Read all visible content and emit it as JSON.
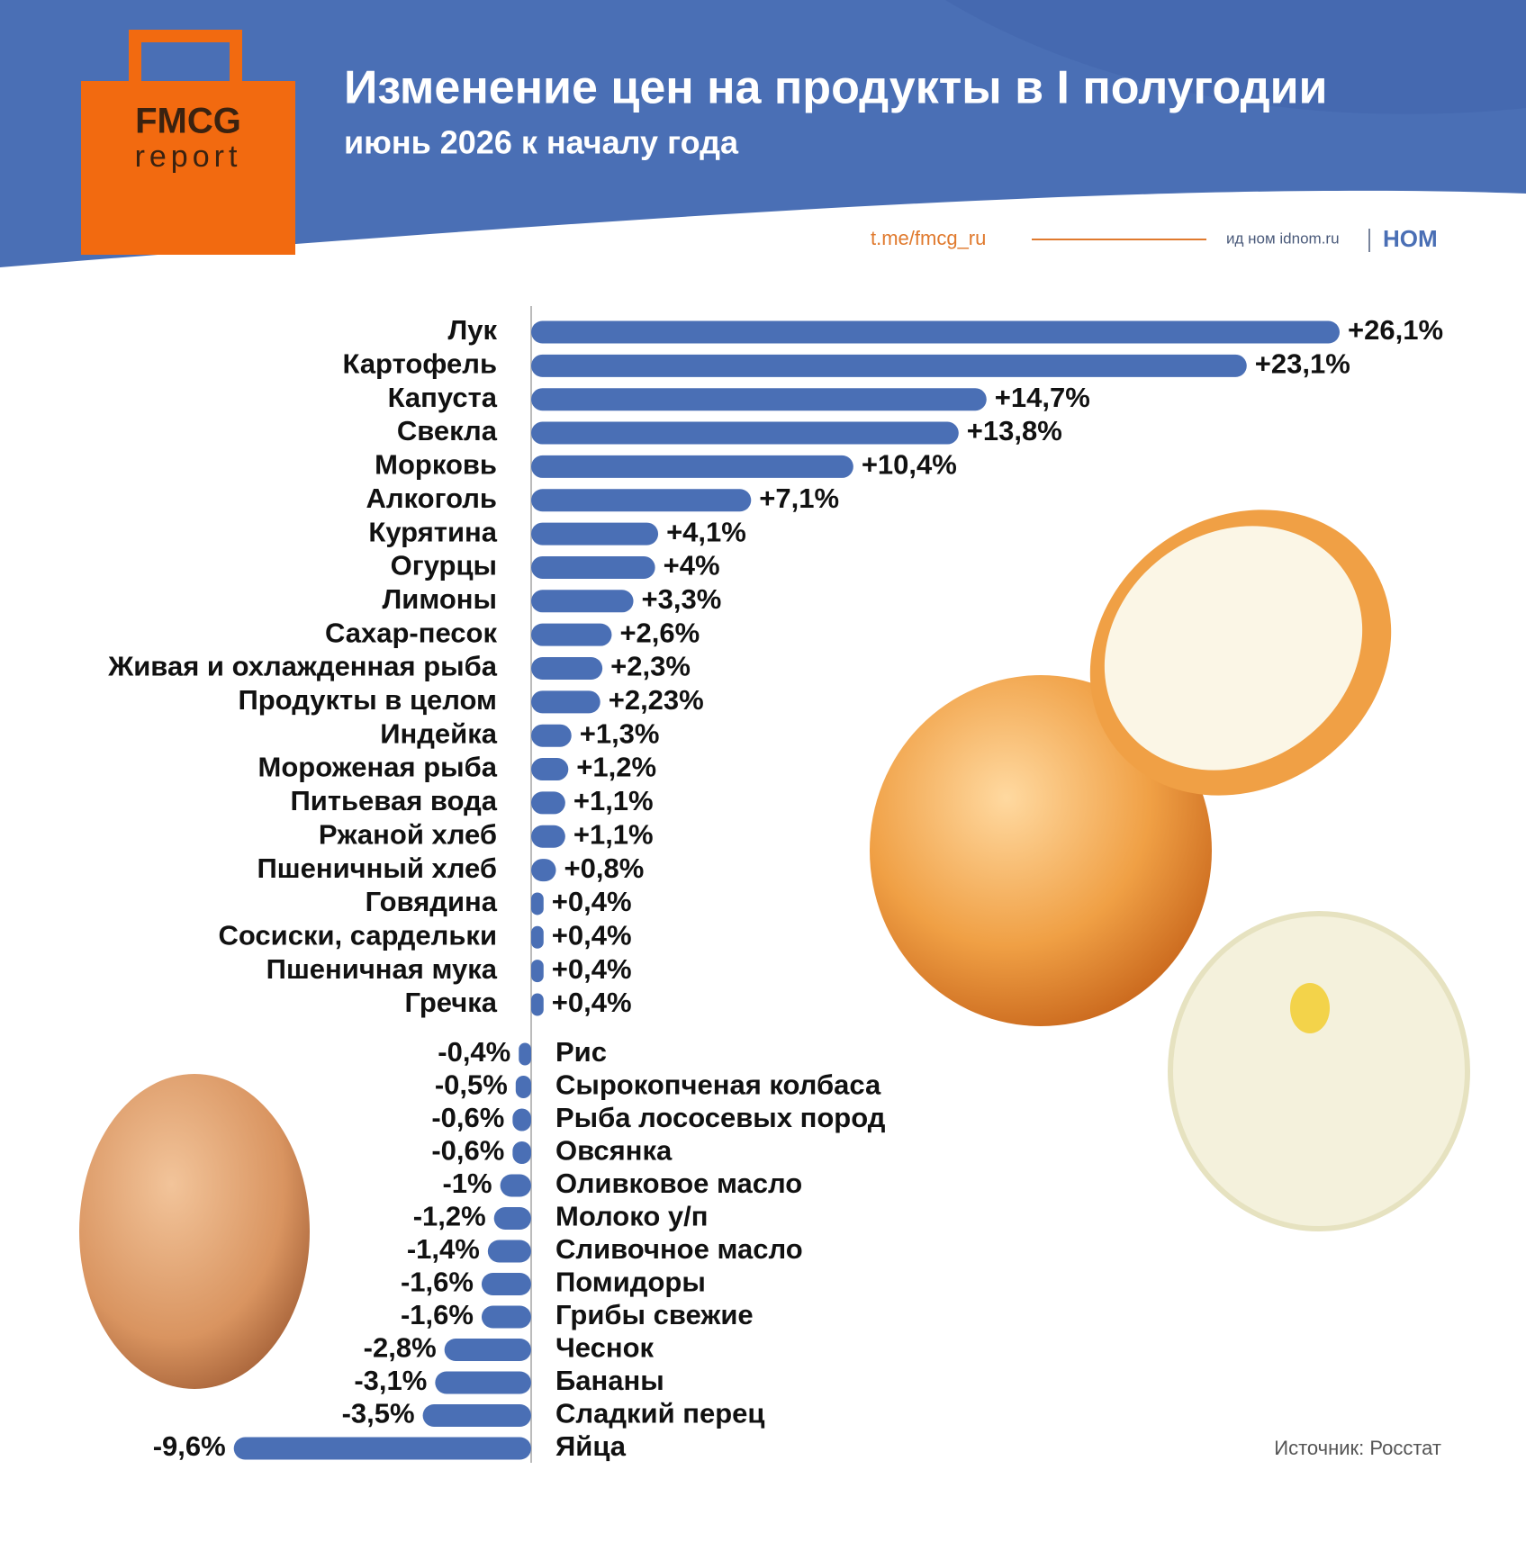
{
  "chart_data": {
    "type": "bar",
    "orientation": "horizontal",
    "title": "Изменение цен на продукты в I полугодии",
    "subtitle": "июнь 2026 к началу года",
    "logo": {
      "title": "FMCG",
      "subtitle": "report"
    },
    "channel": "t.me/fmcg_ru",
    "publisher": "ид ном idnom.ru",
    "brand": "НОМ",
    "source": "Источник: Росстат",
    "color": "#4a6fb5",
    "categories": [
      "Лук",
      "Картофель",
      "Капуста",
      "Свекла",
      "Морковь",
      "Алкоголь",
      "Курятина",
      "Огурцы",
      "Лимоны",
      "Сахар-песок",
      "Живая и охлажденная рыба",
      "Продукты в целом",
      "Индейка",
      "Мороженая рыба",
      "Питьевая вода",
      "Ржаной хлеб",
      "Пшеничный хлеб",
      "Говядина",
      "Сосиски, сардельки",
      "Пшеничная мука",
      "Гречка",
      "Рис",
      "Сырокопченая колбаса",
      "Рыба лососевых пород",
      "Овсянка",
      "Оливковое масло",
      "Молоко у/п",
      "Сливочное масло",
      "Помидоры",
      "Грибы свежие",
      "Чеснок",
      "Бананы",
      "Сладкий перец",
      "Яйца"
    ],
    "values": [
      26.1,
      23.1,
      14.7,
      13.8,
      10.4,
      7.1,
      4.1,
      4,
      3.3,
      2.6,
      2.3,
      2.23,
      1.3,
      1.2,
      1.1,
      1.1,
      0.8,
      0.4,
      0.4,
      0.4,
      0.4,
      -0.4,
      -0.5,
      -0.6,
      -0.6,
      -1,
      -1.2,
      -1.4,
      -1.6,
      -1.6,
      -2.8,
      -3.1,
      -3.5,
      -9.6
    ],
    "value_labels": [
      "+26,1%",
      "+23,1%",
      "+14,7%",
      "+13,8%",
      "+10,4%",
      "+7,1%",
      "+4,1%",
      "+4%",
      "+3,3%",
      "+2,6%",
      "+2,3%",
      "+2,23%",
      "+1,3%",
      "+1,2%",
      "+1,1%",
      "+1,1%",
      "+0,8%",
      "+0,4%",
      "+0,4%",
      "+0,4%",
      "+0,4%",
      "-0,4%",
      "-0,5%",
      "-0,6%",
      "-0,6%",
      "-1%",
      "-1,2%",
      "-1,4%",
      "-1,6%",
      "-1,6%",
      "-2,8%",
      "-3,1%",
      "-3,5%",
      "-9,6%"
    ]
  }
}
